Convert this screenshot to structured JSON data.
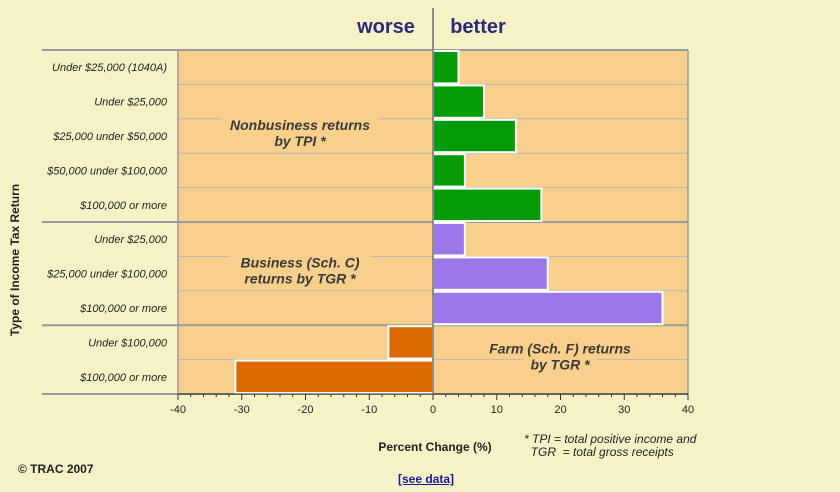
{
  "header": {
    "worse": "worse",
    "better": "better"
  },
  "chart_data": {
    "type": "bar",
    "orientation": "horizontal",
    "categories": [
      "Under $25,000 (1040A)",
      "Under $25,000",
      "$25,000 under $50,000",
      "$50,000 under $100,000",
      "$100,000 or more",
      "Under $25,000",
      "$25,000 under $100,000",
      "$100,000 or more",
      "Under $100,000",
      "$100,000 or more"
    ],
    "values": [
      4,
      8,
      13,
      5,
      17,
      5,
      18,
      36,
      -7,
      -31
    ],
    "groups": [
      {
        "label_lines": [
          "Nonbusiness returns",
          "by TPI *"
        ],
        "start": 0,
        "end": 4,
        "color": "#079c07"
      },
      {
        "label_lines": [
          "Business (Sch. C)",
          "returns by TGR *"
        ],
        "start": 5,
        "end": 7,
        "color": "#9b77ea"
      },
      {
        "label_lines": [
          "Farm (Sch. F) returns",
          "by TGR *"
        ],
        "start": 8,
        "end": 9,
        "color": "#dc6800"
      }
    ],
    "xlabel": "Percent Change (%)",
    "ylabel": "Type of Income Tax Return",
    "xlim": [
      -40,
      40
    ],
    "xticks": [
      -40,
      -30,
      -20,
      -10,
      0,
      10,
      20,
      30,
      40
    ],
    "plot_background": "#f9cf8c",
    "grid": true
  },
  "footer": {
    "note_lines": [
      "* TPI = total positive income and",
      "  TGR  = total gross receipts"
    ],
    "copyright": "© TRAC 2007",
    "link": "[see data]"
  }
}
